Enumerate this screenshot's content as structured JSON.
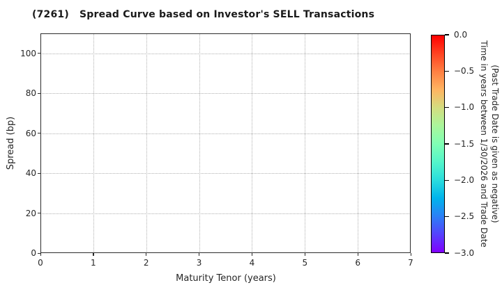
{
  "title": {
    "code": "(7261)",
    "text": "Spread Curve based on Investor's SELL Transactions"
  },
  "chart_data": {
    "type": "scatter",
    "title": "(7261) Spread Curve based on Investor's SELL Transactions",
    "xlabel": "Maturity Tenor (years)",
    "ylabel": "Spread (bp)",
    "xlim": [
      0,
      7
    ],
    "ylim": [
      0,
      110
    ],
    "x_ticks": [
      0,
      1,
      2,
      3,
      4,
      5,
      6,
      7
    ],
    "y_ticks": [
      0,
      20,
      40,
      60,
      80,
      100
    ],
    "grid": {
      "style": "dotted",
      "x_gridlines": [
        1,
        2,
        3,
        4,
        5,
        6
      ],
      "y_gridlines": [
        20,
        40,
        60,
        80,
        100
      ]
    },
    "points": [],
    "colorbar": {
      "min": -3.0,
      "max": 0.0,
      "ticks": [
        {
          "value": 0.0,
          "label": "0.0"
        },
        {
          "value": -0.5,
          "label": "−0.5"
        },
        {
          "value": -1.0,
          "label": "−1.0"
        },
        {
          "value": -1.5,
          "label": "−1.5"
        },
        {
          "value": -2.0,
          "label": "−2.0"
        },
        {
          "value": -2.5,
          "label": "−2.5"
        },
        {
          "value": -3.0,
          "label": "−3.0"
        }
      ],
      "label_line1": "Time in years between 1/30/2026 and Trade Date",
      "label_line2": "(Past Trade Date is given as negative)",
      "colormap": "rainbow (reversed, red at 0.0 to violet at -3.0)",
      "gradient_top_to_bottom": [
        "#ff0000",
        "#ff4221",
        "#ff8042",
        "#ffb461",
        "#d4dd80",
        "#aaf69b",
        "#80ffb4",
        "#55f6ca",
        "#2bdddd",
        "#00b4ec",
        "#2b80f6",
        "#5542fd",
        "#8000ff"
      ]
    },
    "colors": {
      "text": "#262626",
      "spine": "#2b2b2b",
      "grid": "#b0b0b0",
      "background": "#ffffff"
    }
  }
}
